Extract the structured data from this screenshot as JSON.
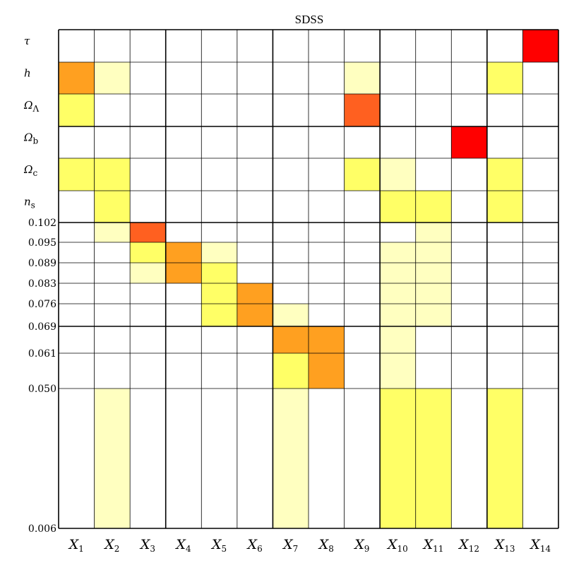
{
  "chart_data": {
    "type": "heatmap",
    "title": "SDSS",
    "xlabel": "",
    "ylabel": "",
    "columns": [
      {
        "base": "X",
        "sub": "1"
      },
      {
        "base": "X",
        "sub": "2"
      },
      {
        "base": "X",
        "sub": "3"
      },
      {
        "base": "X",
        "sub": "4"
      },
      {
        "base": "X",
        "sub": "5"
      },
      {
        "base": "X",
        "sub": "6"
      },
      {
        "base": "X",
        "sub": "7"
      },
      {
        "base": "X",
        "sub": "8"
      },
      {
        "base": "X",
        "sub": "9"
      },
      {
        "base": "X",
        "sub": "10"
      },
      {
        "base": "X",
        "sub": "11"
      },
      {
        "base": "X",
        "sub": "12"
      },
      {
        "base": "X",
        "sub": "13"
      },
      {
        "base": "X",
        "sub": "14"
      }
    ],
    "parameter_rows": [
      {
        "base": "τ",
        "sub": ""
      },
      {
        "base": "h",
        "sub": ""
      },
      {
        "base": "Ω",
        "sub": "Λ"
      },
      {
        "base": "Ω",
        "sub": "b"
      },
      {
        "base": "Ω",
        "sub": "c"
      },
      {
        "base": "n",
        "sub": "s"
      }
    ],
    "redshift_ticks": [
      "0.102",
      "0.095",
      "0.089",
      "0.083",
      "0.076",
      "0.069",
      "0.061",
      "0.050",
      "0.006"
    ],
    "redshift_bins": [
      [
        0.102,
        0.095
      ],
      [
        0.095,
        0.089
      ],
      [
        0.089,
        0.083
      ],
      [
        0.083,
        0.076
      ],
      [
        0.076,
        0.069
      ],
      [
        0.069,
        0.061
      ],
      [
        0.061,
        0.05
      ],
      [
        0.05,
        0.006
      ]
    ],
    "levels": {
      "0": "#ffffff",
      "1": "#ffffc0",
      "2": "#ffff66",
      "3": "#ffa020",
      "4": "#ff6020",
      "5": "#ff0000"
    },
    "cells": [
      [
        0,
        0,
        0,
        0,
        0,
        0,
        0,
        0,
        0,
        0,
        0,
        0,
        0,
        5
      ],
      [
        3,
        1,
        0,
        0,
        0,
        0,
        0,
        0,
        1,
        0,
        0,
        0,
        2,
        0
      ],
      [
        2,
        0,
        0,
        0,
        0,
        0,
        0,
        0,
        4,
        0,
        0,
        0,
        0,
        0
      ],
      [
        0,
        0,
        0,
        0,
        0,
        0,
        0,
        0,
        0,
        0,
        0,
        5,
        0,
        0
      ],
      [
        2,
        2,
        0,
        0,
        0,
        0,
        0,
        0,
        2,
        1,
        0,
        0,
        2,
        0
      ],
      [
        0,
        2,
        0,
        0,
        0,
        0,
        0,
        0,
        0,
        2,
        2,
        0,
        2,
        0
      ],
      [
        0,
        1,
        4,
        0,
        0,
        0,
        0,
        0,
        0,
        0,
        1,
        0,
        0,
        0
      ],
      [
        0,
        0,
        2,
        3,
        1,
        0,
        0,
        0,
        0,
        1,
        1,
        0,
        0,
        0
      ],
      [
        0,
        0,
        1,
        3,
        2,
        0,
        0,
        0,
        0,
        1,
        1,
        0,
        0,
        0
      ],
      [
        0,
        0,
        0,
        0,
        2,
        3,
        0,
        0,
        0,
        1,
        1,
        0,
        0,
        0
      ],
      [
        0,
        0,
        0,
        0,
        2,
        3,
        1,
        0,
        0,
        1,
        1,
        0,
        0,
        0
      ],
      [
        0,
        0,
        0,
        0,
        0,
        0,
        3,
        3,
        0,
        1,
        0,
        0,
        0,
        0
      ],
      [
        0,
        0,
        0,
        0,
        0,
        0,
        2,
        3,
        0,
        1,
        0,
        0,
        0,
        0
      ],
      [
        0,
        1,
        0,
        0,
        0,
        0,
        1,
        0,
        0,
        2,
        2,
        0,
        2,
        0
      ]
    ]
  }
}
